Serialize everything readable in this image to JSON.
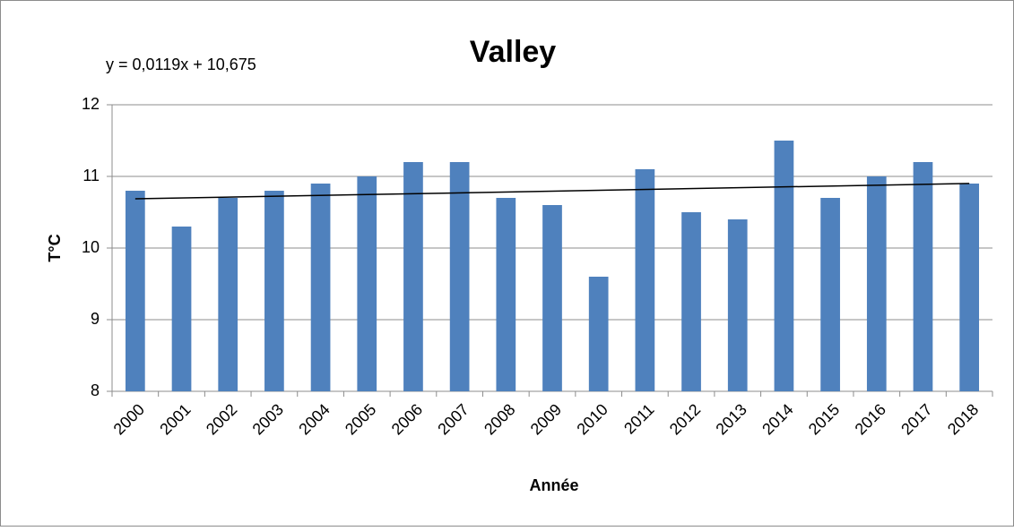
{
  "chart_data": {
    "type": "bar",
    "title": "Valley",
    "annotation": "y = 0,0119x + 10,675",
    "trendline": {
      "slope": 0.0119,
      "intercept": 10.675
    },
    "x_label": "Année",
    "y_label": "T°C",
    "categories": [
      "2000",
      "2001",
      "2002",
      "2003",
      "2004",
      "2005",
      "2006",
      "2007",
      "2008",
      "2009",
      "2010",
      "2011",
      "2012",
      "2013",
      "2014",
      "2015",
      "2016",
      "2017",
      "2018"
    ],
    "values": [
      10.8,
      10.3,
      10.7,
      10.8,
      10.9,
      11.0,
      11.2,
      11.2,
      10.7,
      10.6,
      9.6,
      11.1,
      10.5,
      10.4,
      11.5,
      10.7,
      11.0,
      11.2,
      10.9
    ],
    "color": "#4f81bd",
    "ylim": [
      8,
      12
    ],
    "yticks": [
      8,
      9,
      10,
      11,
      12
    ],
    "grid": true
  }
}
